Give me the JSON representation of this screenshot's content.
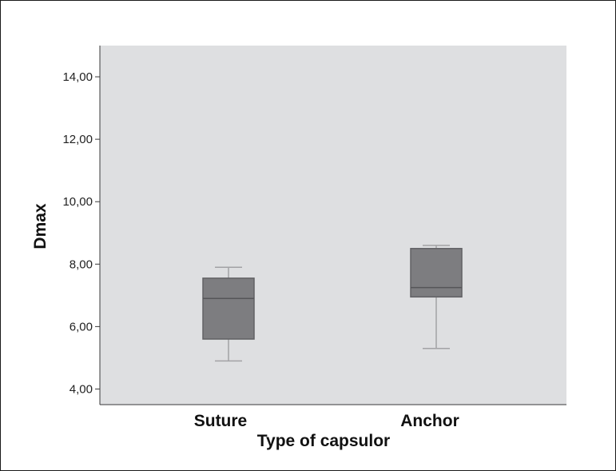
{
  "chart_data": {
    "type": "boxplot",
    "xlabel": "Type of capsulor",
    "ylabel": "Dmax",
    "ylim": [
      3.5,
      15.0
    ],
    "yticks": [
      4,
      6,
      8,
      10,
      12,
      14
    ],
    "ytick_labels": [
      "4,00",
      "6,00",
      "8,00",
      "10,00",
      "12,00",
      "14,00"
    ],
    "categories": [
      "Suture",
      "Anchor"
    ],
    "boxes": [
      {
        "category": "Suture",
        "min": 4.9,
        "q1": 5.6,
        "median": 6.9,
        "q3": 7.55,
        "max": 7.9
      },
      {
        "category": "Anchor",
        "min": 5.3,
        "q1": 6.95,
        "median": 7.25,
        "q3": 8.5,
        "max": 8.6
      }
    ],
    "grid": false,
    "colors": {
      "plot_background": "#dedfe1",
      "box_fill": "#7d7d80",
      "box_edge": "#616164",
      "whisker": "#a2a2a5",
      "axis": "#3a3a3a"
    }
  }
}
